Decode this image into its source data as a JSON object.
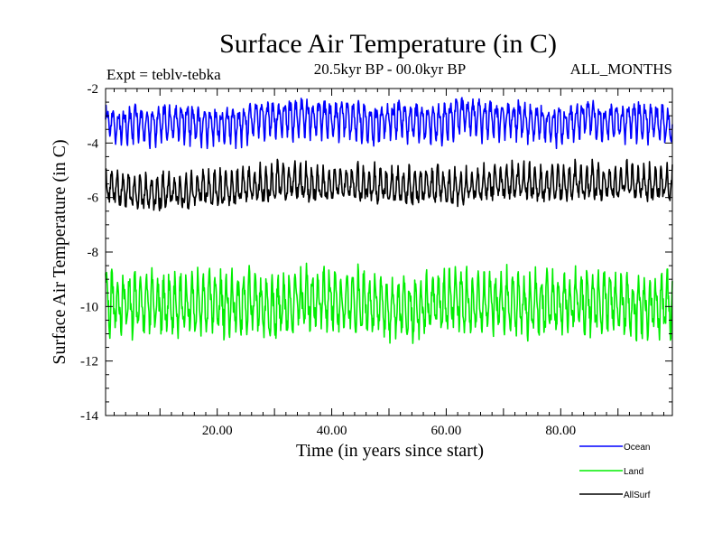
{
  "chart_data": {
    "type": "line",
    "title": "Surface Air Temperature (in C)",
    "subtitle_left": "Expt = teblv-tebka",
    "subtitle_center": "20.5kyr BP - 00.0kyr BP",
    "subtitle_right": "ALL_MONTHS",
    "xlabel": "Time (in years since start)",
    "ylabel": "Surface Air Temperature (in C)",
    "xlim": [
      0.5,
      99.5
    ],
    "ylim": [
      -14,
      -2
    ],
    "x_ticks": [
      20,
      40,
      60,
      80
    ],
    "x_tick_labels": [
      "20.00",
      "40.00",
      "60.00",
      "80.00"
    ],
    "y_ticks": [
      -14,
      -12,
      -10,
      -8,
      -6,
      -4,
      -2
    ],
    "y_tick_labels": [
      "-14",
      "-12",
      "-10",
      "-8",
      "-6",
      "-4",
      "-2"
    ],
    "legend_position": "bottom-right, outside plot",
    "series": [
      {
        "name": "Ocean",
        "color": "#0000ff",
        "mean": -3.2,
        "seasonal_amplitude": 0.55,
        "noise_amplitude": 0.25,
        "range_approx": [
          -4.2,
          -2.3
        ]
      },
      {
        "name": "Land",
        "color": "#00ee00",
        "mean": -9.9,
        "seasonal_amplitude": 0.85,
        "noise_amplitude": 0.45,
        "range_approx": [
          -12.1,
          -7.9
        ]
      },
      {
        "name": "AllSurf",
        "color": "#000000",
        "mean": -5.6,
        "seasonal_amplitude": 0.5,
        "noise_amplitude": 0.25,
        "range_approx": [
          -6.8,
          -4.6
        ]
      }
    ]
  }
}
